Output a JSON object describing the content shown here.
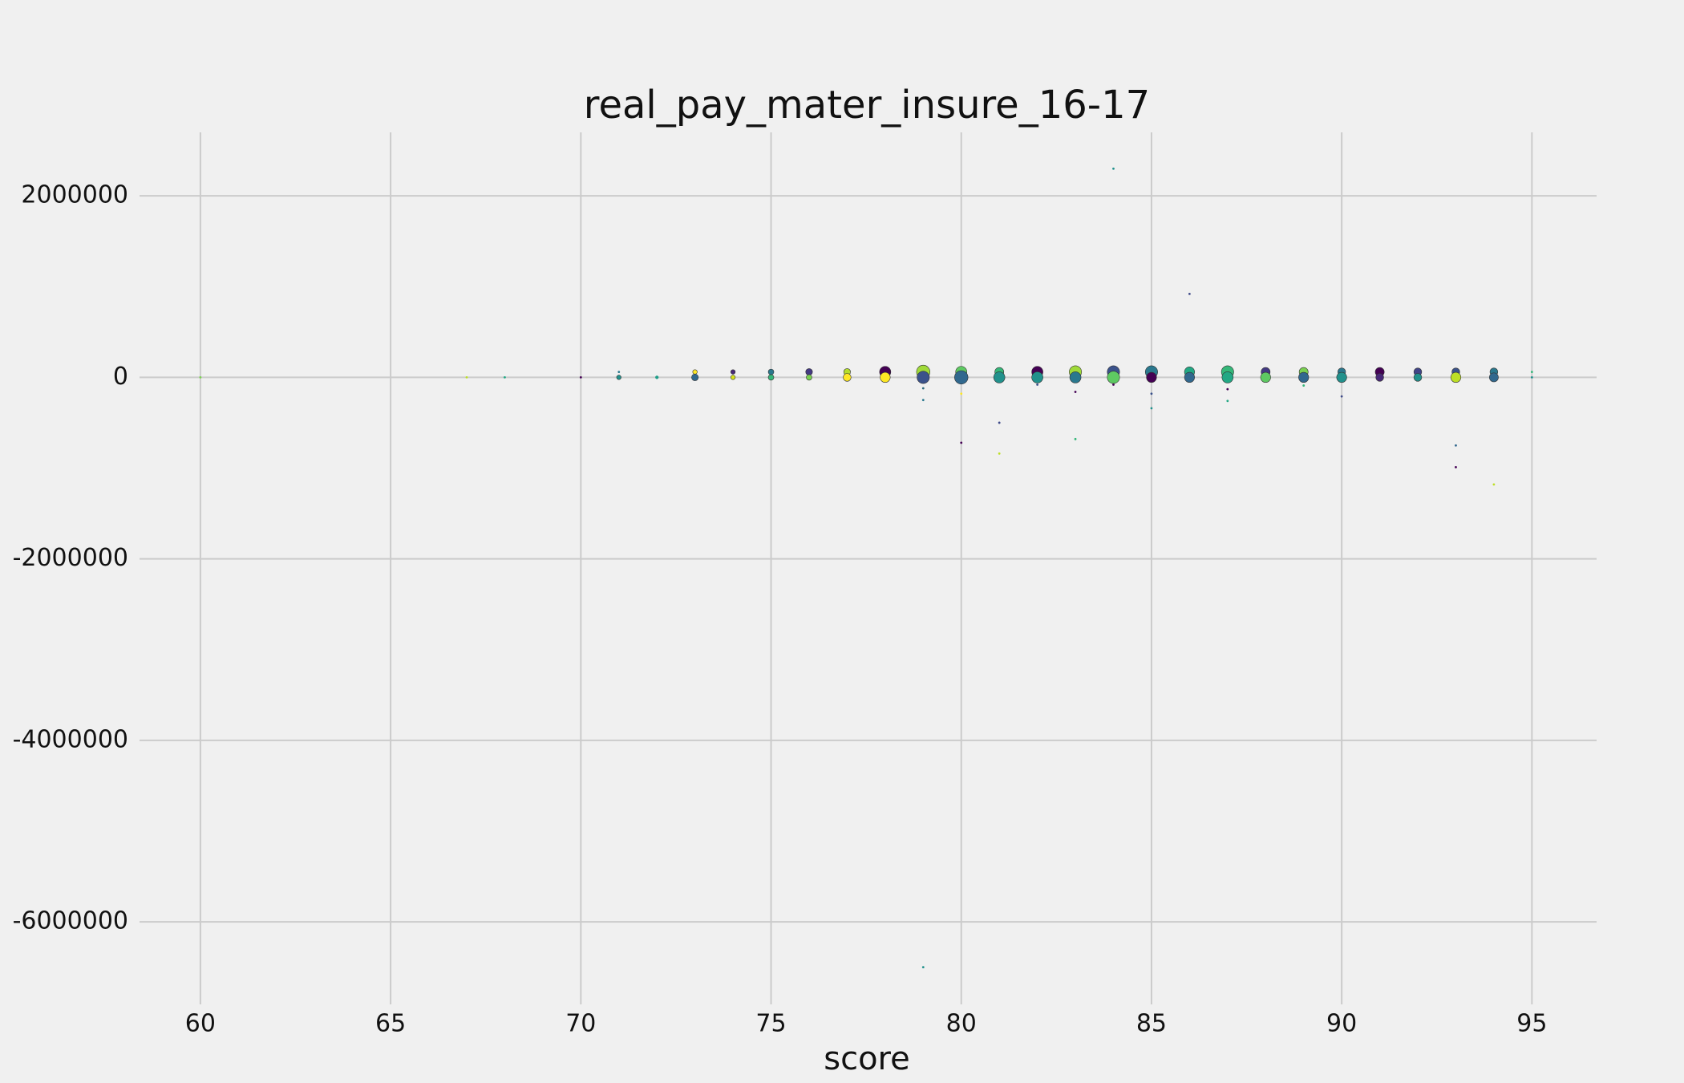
{
  "chart_data": {
    "type": "scatter",
    "title": "real_pay_mater_insure_16-17",
    "x_label": "score",
    "xlim": [
      58.4,
      96.7
    ],
    "ylim": [
      -6910000,
      2700000
    ],
    "xticks": [
      60,
      65,
      70,
      75,
      80,
      85,
      90,
      95
    ],
    "yticks": [
      -6000000,
      -4000000,
      -2000000,
      0,
      2000000
    ],
    "grid": true,
    "series": [
      {
        "x": [
          60,
          67,
          68,
          70,
          71,
          71,
          72,
          73,
          73,
          74,
          74,
          75,
          75,
          76,
          76,
          77,
          77,
          78,
          78,
          79,
          79,
          79,
          79,
          79,
          80,
          80,
          80,
          80,
          81,
          81,
          81,
          81,
          82,
          82,
          82,
          83,
          83,
          83,
          83,
          84,
          84,
          84,
          84,
          85,
          85,
          85,
          85,
          86,
          86,
          86,
          87,
          87,
          87,
          87,
          88,
          88,
          89,
          89,
          89,
          90,
          90,
          90,
          91,
          91,
          92,
          92,
          93,
          93,
          93,
          93,
          94,
          94,
          94,
          95,
          95
        ],
        "values": [
          0,
          0,
          0,
          0,
          60000,
          0,
          0,
          60000,
          0,
          60000,
          0,
          60000,
          0,
          60000,
          0,
          60000,
          0,
          60000,
          0,
          60000,
          0,
          -120000,
          -250000,
          -6500000,
          60000,
          0,
          -180000,
          -720000,
          60000,
          0,
          -500000,
          -840000,
          60000,
          0,
          -80000,
          60000,
          0,
          -160000,
          -680000,
          60000,
          0,
          -80000,
          2300000,
          60000,
          0,
          -180000,
          -340000,
          60000,
          0,
          920000,
          60000,
          0,
          -130000,
          -260000,
          60000,
          0,
          60000,
          0,
          -90000,
          60000,
          0,
          -210000,
          60000,
          0,
          60000,
          0,
          60000,
          0,
          -750000,
          -990000,
          60000,
          0,
          -1180000,
          60000,
          0
        ],
        "sizes": [
          2,
          2,
          2,
          2,
          2,
          4,
          3,
          4,
          6,
          4,
          4,
          5,
          5,
          6,
          5,
          6,
          7,
          10,
          9,
          12,
          11,
          2,
          2,
          2,
          10,
          12,
          2,
          2,
          8,
          10,
          2,
          2,
          10,
          10,
          2,
          11,
          10,
          2,
          2,
          11,
          11,
          2,
          2,
          11,
          9,
          2,
          2,
          9,
          9,
          2,
          11,
          10,
          2,
          2,
          8,
          9,
          8,
          9,
          2,
          7,
          9,
          2,
          8,
          7,
          7,
          7,
          7,
          9,
          2,
          2,
          7,
          8,
          2,
          2,
          2
        ],
        "colors": [
          "#7ad151",
          "#bddf26",
          "#22a884",
          "#440154",
          "#2a788e",
          "#21918c",
          "#1f9e89",
          "#fde725",
          "#31688e",
          "#482878",
          "#d8e219",
          "#2a788e",
          "#35b779",
          "#443983",
          "#7ad151",
          "#b5de2b",
          "#fde725",
          "#440154",
          "#fde725",
          "#a0da39",
          "#3b528b",
          "#30697e",
          "#2a788e",
          "#21918c",
          "#5ec962",
          "#31688e",
          "#fde725",
          "#440154",
          "#35b779",
          "#21918c",
          "#3e4a89",
          "#bddf26",
          "#440154",
          "#21918c",
          "#3b528b",
          "#a0da39",
          "#2a788e",
          "#440154",
          "#35b779",
          "#3b528b",
          "#5ec962",
          "#440154",
          "#21918c",
          "#2a788e",
          "#440154",
          "#3b528b",
          "#21918c",
          "#22a884",
          "#31688e",
          "#3e4a89",
          "#35b779",
          "#22a884",
          "#440154",
          "#22a884",
          "#443983",
          "#5ec962",
          "#7ad151",
          "#31688e",
          "#35b779",
          "#2a788e",
          "#21918c",
          "#3e4a89",
          "#440154",
          "#482878",
          "#414487",
          "#21918c",
          "#3b528b",
          "#bddf26",
          "#31688e",
          "#440154",
          "#2a788e",
          "#31688e",
          "#bddf26",
          "#35b779",
          "#21918c"
        ]
      }
    ]
  }
}
